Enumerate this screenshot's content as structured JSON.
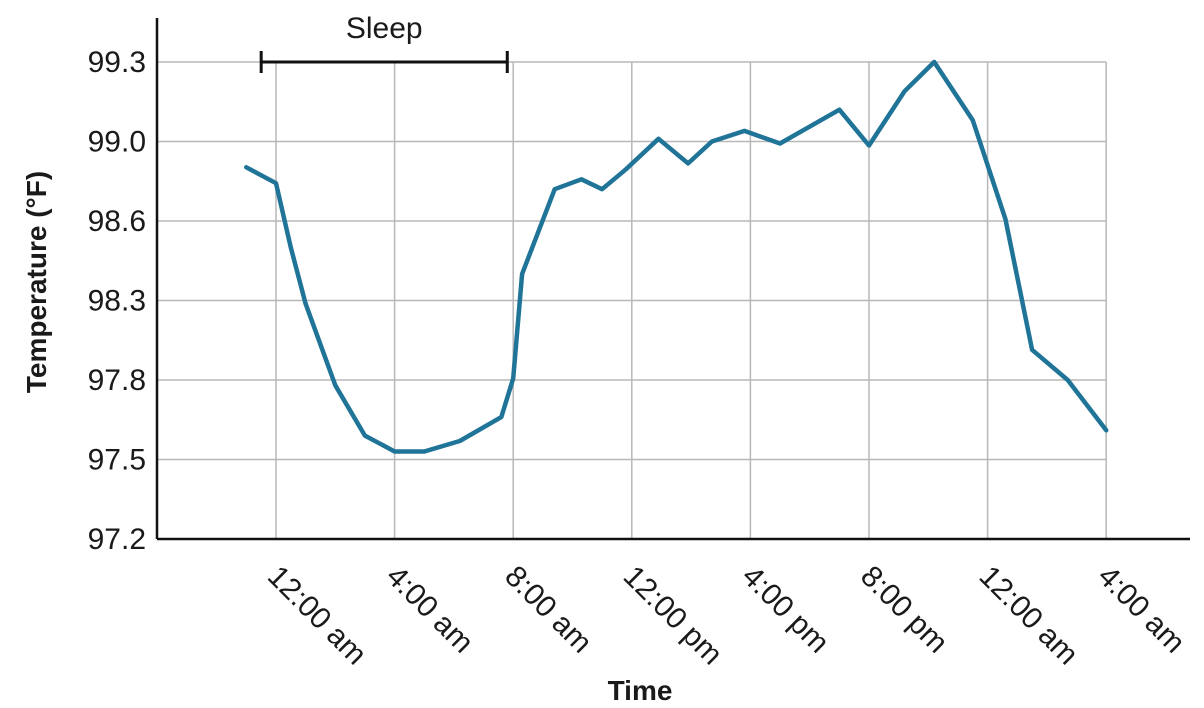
{
  "chart_data": {
    "type": "line",
    "ylabel": "Temperature (°F)",
    "xlabel": "Time",
    "y_ticks": [
      "97.2",
      "97.5",
      "97.8",
      "98.3",
      "98.6",
      "99.0",
      "99.3"
    ],
    "x_ticks": [
      "12:00 am",
      "4:00 am",
      "8:00 am",
      "12:00 pm",
      "4:00 pm",
      "8:00 pm",
      "12:00 am",
      "4:00 am"
    ],
    "grid": true,
    "colors": {
      "line": "#1f7498",
      "grid": "#b8b8b8",
      "axis": "#111111"
    },
    "series": [
      {
        "x_hours": [
          -1,
          0,
          0.5,
          1,
          2,
          3,
          4,
          5,
          6.2,
          7.6,
          8,
          8.3,
          9.4,
          10.3,
          11,
          11.8,
          12.9,
          13.9,
          14.7,
          15.8,
          17,
          17.9,
          19,
          20,
          21.2,
          22.2,
          23.5,
          24.6,
          25.5,
          26.7,
          28
        ],
        "y_display": [
          98.87,
          98.79,
          98.5,
          98.28,
          97.78,
          97.59,
          97.53,
          97.53,
          97.57,
          97.66,
          97.81,
          98.4,
          98.76,
          98.81,
          98.76,
          98.86,
          99.01,
          98.89,
          99.0,
          99.04,
          98.99,
          99.05,
          99.12,
          98.98,
          99.19,
          99.3,
          99.08,
          98.61,
          97.99,
          97.8,
          97.61
        ]
      }
    ],
    "annotations": [
      {
        "label": "Sleep",
        "x_start_hour": -0.5,
        "x_end_hour": 7.8,
        "y_display": 99.3
      }
    ]
  }
}
